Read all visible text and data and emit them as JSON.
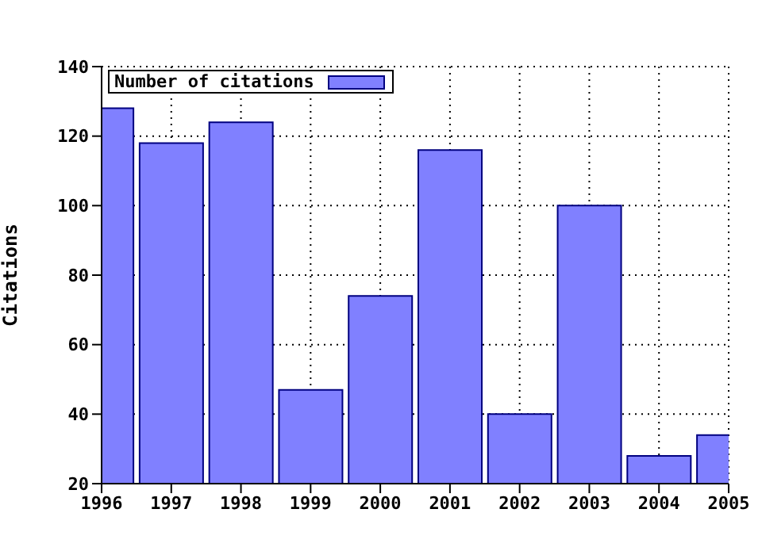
{
  "chart_data": {
    "type": "bar",
    "ylabel": "Citations",
    "x": [
      1996,
      1997,
      1998,
      1999,
      2000,
      2001,
      2002,
      2003,
      2004,
      2005
    ],
    "series": [
      {
        "name": "Number of citations",
        "color": "#8080ff",
        "values": [
          128,
          118,
          124,
          47,
          74,
          116,
          40,
          100,
          28,
          34
        ]
      }
    ],
    "xlim": [
      1996,
      2005
    ],
    "xticks": [
      1996,
      1997,
      1998,
      1999,
      2000,
      2001,
      2002,
      2003,
      2004,
      2005
    ],
    "ylim": [
      20,
      140
    ],
    "yticks": [
      20,
      40,
      60,
      80,
      100,
      120,
      140
    ],
    "grid": true,
    "legend": "top left"
  }
}
